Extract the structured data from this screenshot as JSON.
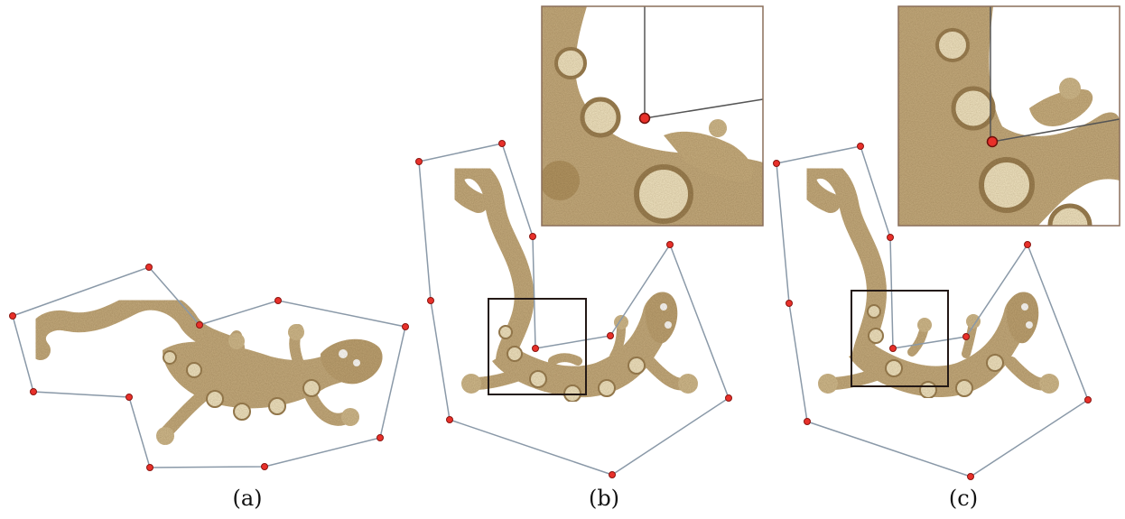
{
  "figure": {
    "panels": [
      {
        "id": "a",
        "label": "(a)"
      },
      {
        "id": "b",
        "label": "(b)"
      },
      {
        "id": "c",
        "label": "(c)"
      }
    ]
  },
  "colors": {
    "background": "#ffffff",
    "cage_line": "#8a99a8",
    "vertex": "#e8302a",
    "vertex_outline": "#8a1510",
    "zoom_frame": "#231815",
    "lizard_body": "#c6ad7f",
    "lizard_dark": "#9e8254",
    "lizard_spot": "#f2e6c4"
  }
}
